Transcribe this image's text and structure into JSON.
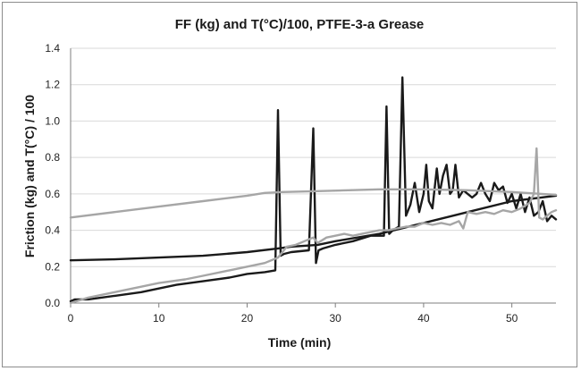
{
  "chart_data": {
    "type": "line",
    "title": "FF (kg) and T(°C)/100, PTFE-3-a Grease",
    "xlabel": "Time (min)",
    "ylabel": "Friction (kg) and T(°C) / 100",
    "xlim": [
      0,
      55
    ],
    "ylim": [
      0,
      1.4
    ],
    "xticks": [
      0,
      10,
      20,
      30,
      40,
      50
    ],
    "xtick_labels": [
      "0",
      "10",
      "20",
      "30",
      "40",
      "50"
    ],
    "yticks": [
      0,
      0.2,
      0.4,
      0.6,
      0.8,
      1.0,
      1.2,
      1.4
    ],
    "ytick_labels": [
      "0.0",
      "0.2",
      "0.4",
      "0.6",
      "0.8",
      "1.0",
      "1.2",
      "1.4"
    ],
    "grid": "horizontal",
    "legend": "none",
    "series": [
      {
        "color": "#1a1a1a",
        "width": 2.4,
        "x": [
          0,
          0.5,
          2,
          5,
          8,
          10,
          12,
          15,
          18,
          20,
          22,
          23.2,
          23.5,
          23.8,
          24.2,
          25,
          27,
          27.5,
          27.8,
          28.1,
          28.6,
          30,
          32,
          34,
          35.5,
          35.8,
          36.1,
          36.5,
          37.2,
          37.6,
          38,
          38.5,
          39,
          39.5,
          40,
          40.3,
          40.6,
          41,
          41.5,
          41.8,
          42.2,
          42.6,
          43,
          43.3,
          43.6,
          44,
          44.5,
          45,
          45.5,
          46,
          46.5,
          47,
          47.5,
          48,
          48.5,
          49,
          49.5,
          50,
          50.5,
          51,
          51.5,
          52,
          52.5,
          53,
          53.5,
          54,
          54.5,
          55
        ],
        "y": [
          0.01,
          0.02,
          0.02,
          0.04,
          0.06,
          0.08,
          0.1,
          0.12,
          0.14,
          0.16,
          0.17,
          0.18,
          1.06,
          0.26,
          0.27,
          0.28,
          0.29,
          0.96,
          0.22,
          0.29,
          0.3,
          0.32,
          0.34,
          0.37,
          0.37,
          1.08,
          0.38,
          0.4,
          0.42,
          1.24,
          0.48,
          0.54,
          0.66,
          0.5,
          0.6,
          0.76,
          0.56,
          0.52,
          0.74,
          0.6,
          0.7,
          0.76,
          0.6,
          0.62,
          0.76,
          0.58,
          0.62,
          0.6,
          0.58,
          0.6,
          0.66,
          0.6,
          0.56,
          0.66,
          0.62,
          0.64,
          0.55,
          0.6,
          0.52,
          0.6,
          0.5,
          0.58,
          0.48,
          0.5,
          0.56,
          0.45,
          0.48,
          0.46
        ]
      },
      {
        "color": "#1a1a1a",
        "width": 2.4,
        "x": [
          0,
          5,
          10,
          15,
          20,
          23.5,
          25,
          28,
          30,
          35,
          40,
          45,
          50,
          55
        ],
        "y": [
          0.235,
          0.24,
          0.25,
          0.26,
          0.28,
          0.3,
          0.31,
          0.32,
          0.34,
          0.38,
          0.44,
          0.5,
          0.56,
          0.59
        ]
      },
      {
        "color": "#a6a6a6",
        "width": 2.4,
        "x": [
          0,
          5,
          10,
          15,
          20,
          22,
          24,
          28,
          35,
          40,
          45,
          50,
          55
        ],
        "y": [
          0.47,
          0.5,
          0.53,
          0.56,
          0.59,
          0.605,
          0.61,
          0.615,
          0.625,
          0.625,
          0.62,
          0.61,
          0.595
        ]
      },
      {
        "color": "#a6a6a6",
        "width": 2.4,
        "x": [
          0,
          2,
          5,
          8,
          10,
          13,
          15,
          18,
          20,
          22,
          23.5,
          24.5,
          25.5,
          26.5,
          27.5,
          28,
          29,
          30,
          31,
          32,
          33,
          34,
          35,
          36,
          37,
          38,
          39,
          40,
          41,
          42,
          43,
          44,
          44.5,
          45,
          46,
          47,
          48,
          49,
          50,
          51,
          52,
          52.5,
          52.8,
          53.1,
          53.5,
          54,
          54.5,
          55
        ],
        "y": [
          0.0,
          0.03,
          0.06,
          0.09,
          0.11,
          0.13,
          0.15,
          0.18,
          0.2,
          0.22,
          0.25,
          0.31,
          0.32,
          0.34,
          0.36,
          0.33,
          0.36,
          0.37,
          0.38,
          0.37,
          0.38,
          0.39,
          0.4,
          0.4,
          0.41,
          0.42,
          0.42,
          0.44,
          0.43,
          0.44,
          0.43,
          0.45,
          0.41,
          0.5,
          0.49,
          0.5,
          0.49,
          0.51,
          0.5,
          0.52,
          0.55,
          0.6,
          0.85,
          0.47,
          0.46,
          0.48,
          0.5,
          0.51
        ]
      }
    ]
  }
}
